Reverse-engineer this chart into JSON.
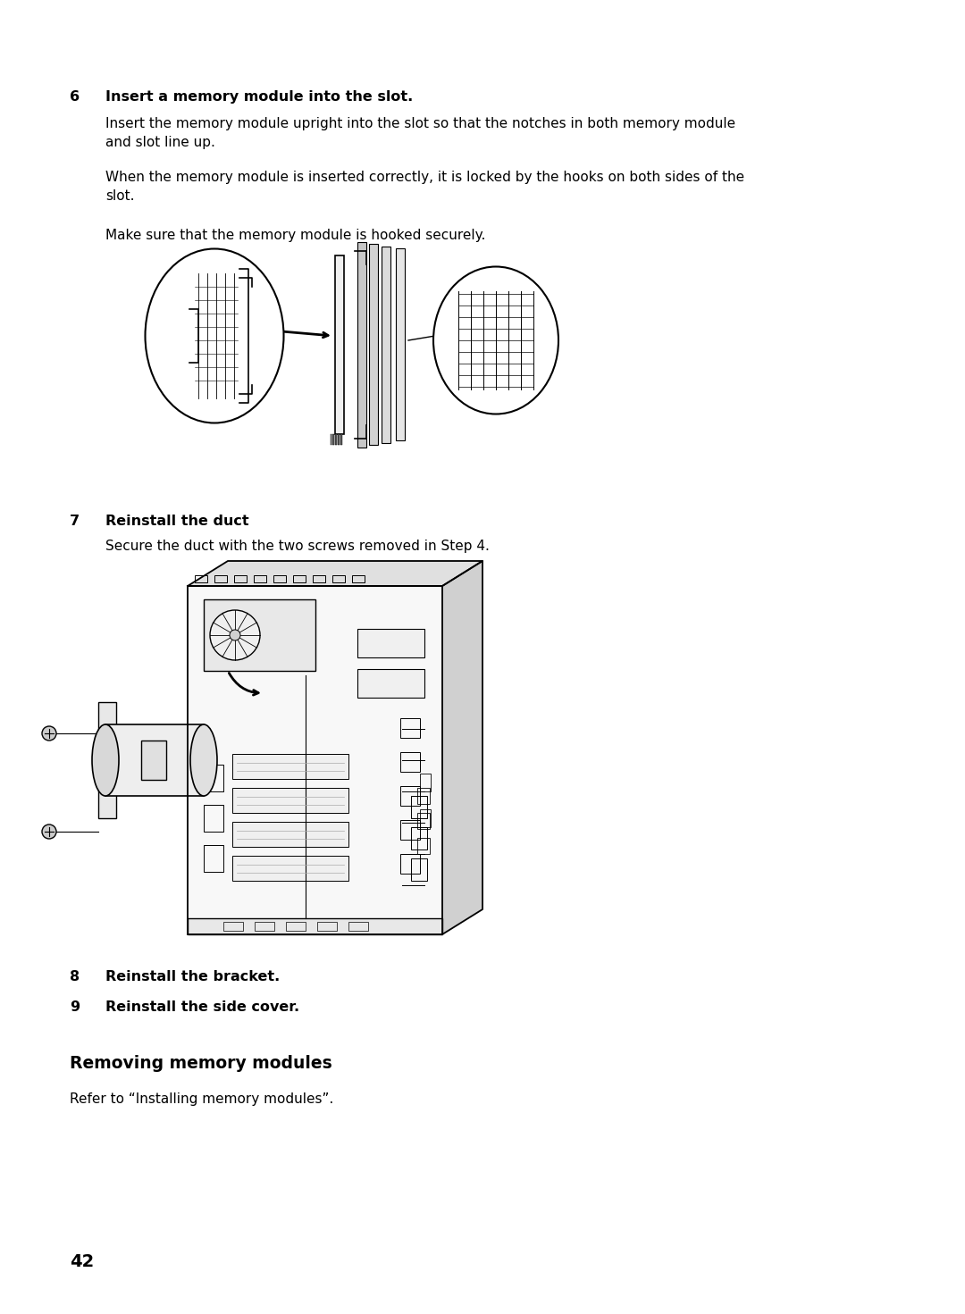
{
  "bg_color": "#ffffff",
  "text_color": "#000000",
  "page_number": "42",
  "step6_number": "6",
  "step6_title": "Insert a memory module into the slot.",
  "step6_body1": "Insert the memory module upright into the slot so that the notches in both memory module\nand slot line up.",
  "step6_body2": "When the memory module is inserted correctly, it is locked by the hooks on both sides of the\nslot.",
  "step6_body3": "Make sure that the memory module is hooked securely.",
  "step7_number": "7",
  "step7_title": "Reinstall the duct",
  "step7_body": "Secure the duct with the two screws removed in Step 4.",
  "step8_number": "8",
  "step8_title": "Reinstall the bracket.",
  "step9_number": "9",
  "step9_title": "Reinstall the side cover.",
  "section_title": "Removing memory modules",
  "section_body": "Refer to “Installing memory modules”.",
  "font_body": 11.0,
  "font_bold": 11.5,
  "font_section": 13.5
}
